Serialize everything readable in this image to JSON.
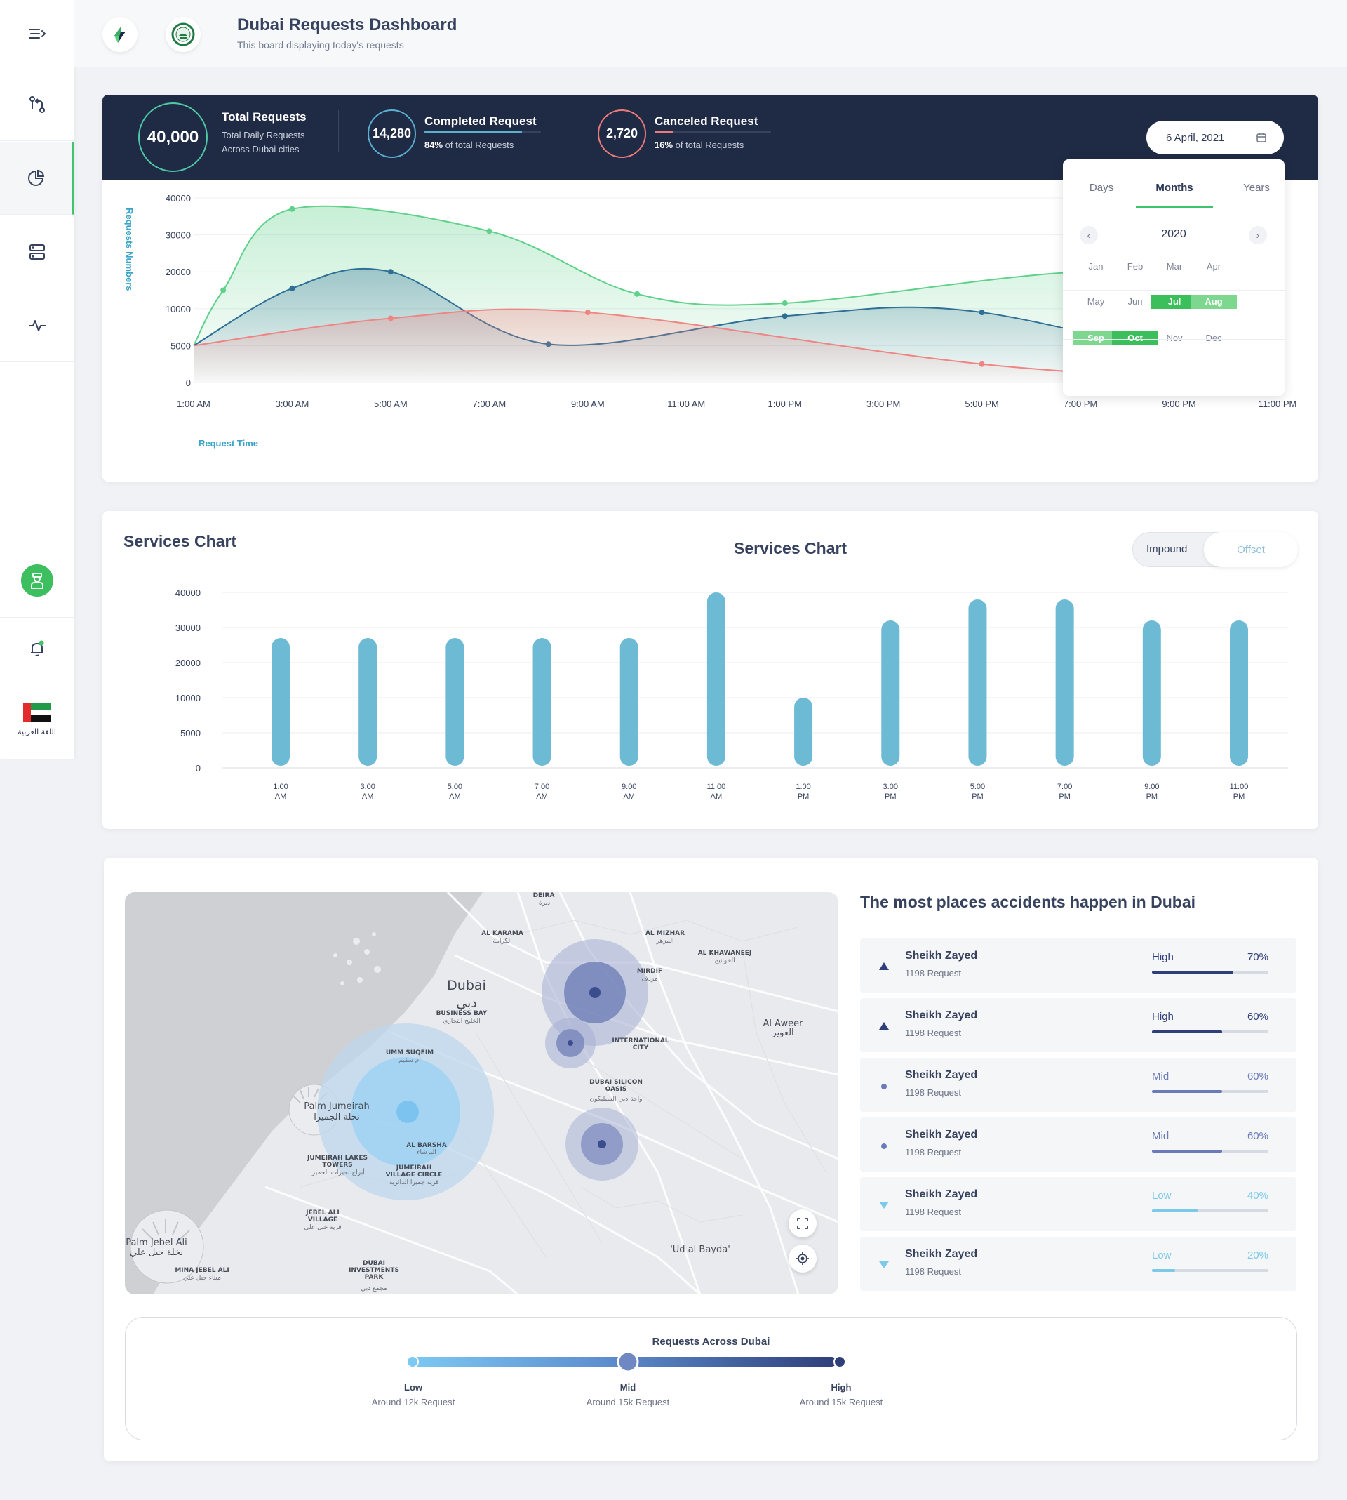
{
  "header": {
    "title": "Dubai Requests Dashboard",
    "subtitle": "This board displaying today's requests"
  },
  "sidebar": {
    "language_label": "اللغة العربية",
    "items": [
      "menu-toggle",
      "routes",
      "analytics",
      "servers",
      "activity"
    ]
  },
  "stats": {
    "total": {
      "value": "40,000",
      "title": "Total Requests",
      "line1": "Total Daily Requests",
      "line2": "Across Dubai cities"
    },
    "completed": {
      "value": "14,280",
      "title": "Completed Request",
      "percent": "84%",
      "percent_suffix": "of total Requests",
      "progress": 0.84,
      "color": "#5aaed0"
    },
    "canceled": {
      "value": "2,720",
      "title": "Canceled Request",
      "percent": "16%",
      "percent_suffix": "of total Requests",
      "progress": 0.16,
      "color": "#ec7a78"
    }
  },
  "date_picker": {
    "value": "6 April, 2021",
    "tabs": [
      "Days",
      "Months",
      "Years"
    ],
    "active_tab": "Months",
    "year": "2020",
    "months": [
      "Jan",
      "Feb",
      "Mar",
      "Apr",
      "May",
      "Jun",
      "Jul",
      "Aug",
      "Sep",
      "Oct",
      "Nov",
      "Dec"
    ],
    "selected": [
      "Jul",
      "Oct"
    ],
    "range": [
      "Aug",
      "Sep"
    ]
  },
  "chart_data": [
    {
      "type": "area",
      "ylabel": "Requests Numbers",
      "xlabel": "Request Time",
      "x": [
        "1:00 AM",
        "3:00 AM",
        "5:00 AM",
        "7:00 AM",
        "9:00 AM",
        "11:00 AM",
        "1:00 PM",
        "3:00 PM",
        "5:00 PM",
        "7:00 PM",
        "9:00 PM",
        "11:00 PM"
      ],
      "yticks": [
        "0",
        "5000",
        "10000",
        "20000",
        "30000",
        "40000"
      ],
      "series": [
        {
          "color": "#5fd18a",
          "points": [
            [
              0,
              5000
            ],
            [
              0.3,
              15000
            ],
            [
              1,
              37000
            ],
            [
              3,
              31000
            ],
            [
              4.5,
              14000
            ],
            [
              6,
              11500
            ],
            [
              9,
              20000
            ],
            [
              11,
              17000
            ]
          ]
        },
        {
          "color": "#2e6f95",
          "points": [
            [
              0,
              5000
            ],
            [
              1,
              15500
            ],
            [
              2,
              20000
            ],
            [
              3.6,
              5200
            ],
            [
              6,
              9000
            ],
            [
              8,
              9500
            ],
            [
              11,
              0
            ]
          ]
        },
        {
          "color": "#ef8583",
          "points": [
            [
              0,
              5000
            ],
            [
              2,
              8700
            ],
            [
              4,
              9500
            ],
            [
              8,
              2500
            ],
            [
              11,
              0
            ]
          ]
        }
      ]
    },
    {
      "type": "bar",
      "title": "Services Chart",
      "categories": [
        "1:00 AM",
        "3:00 AM",
        "5:00 AM",
        "7:00 AM",
        "9:00 AM",
        "11:00 AM",
        "1:00 PM",
        "3:00 PM",
        "5:00 PM",
        "7:00 PM",
        "9:00 PM",
        "11:00 PM"
      ],
      "values": [
        27000,
        27000,
        27000,
        27000,
        27000,
        40000,
        10000,
        32000,
        38000,
        38000,
        32000,
        32000
      ],
      "yticks": [
        "0",
        "5000",
        "10000",
        "20000",
        "30000",
        "40000"
      ],
      "color": "#6dbad4"
    }
  ],
  "services": {
    "title": "Services Chart",
    "center_title": "Services Chart",
    "toggle": [
      "Impound",
      "Offset"
    ],
    "active": "Offset"
  },
  "map": {
    "labels": [
      "DEIRA",
      "ديرة",
      "AL KARAMA",
      "الكرامة",
      "AL MIZHAR",
      "المزهر",
      "AL KHAWANEEJ",
      "الخوانيج",
      "Dubai",
      "دبي",
      "BUSINESS BAY",
      "الخليج التجاري",
      "MIRDIF",
      "مردف",
      "Al Aweer",
      "العوير",
      "INTERNATIONAL CITY",
      "UMM SUQEIM",
      "أم سقيم",
      "DUBAI SILICON OASIS",
      "واحة دبي السيليكون",
      "Palm Jumeirah",
      "نخلة الجميرا",
      "AL BARSHA",
      "البرشاء",
      "JUMEIRAH LAKES TOWERS",
      "أبراج بحيرات الجميرا",
      "JUMEIRAH VILLAGE CIRCLE",
      "قرية جميرا الدائرية",
      "JEBEL ALI VILLAGE",
      "قرية جبل علي",
      "Palm Jebel Ali",
      "نخلة جبل علي",
      "MINA JEBEL ALI",
      "ميناء جبل علي",
      "DUBAI INVESTMENTS PARK",
      "مجمع دبي",
      "'Ud al Bayda'"
    ]
  },
  "accidents": {
    "title": "The most places accidents happen in Dubai",
    "items": [
      {
        "name": "Sheikh Zayed",
        "requests": "1198 Request",
        "level": "High",
        "percent": "70%",
        "progress": 0.7
      },
      {
        "name": "Sheikh Zayed",
        "requests": "1198 Request",
        "level": "High",
        "percent": "60%",
        "progress": 0.6
      },
      {
        "name": "Sheikh Zayed",
        "requests": "1198 Request",
        "level": "Mid",
        "percent": "60%",
        "progress": 0.6
      },
      {
        "name": "Sheikh Zayed",
        "requests": "1198 Request",
        "level": "Mid",
        "percent": "60%",
        "progress": 0.6
      },
      {
        "name": "Sheikh Zayed",
        "requests": "1198 Request",
        "level": "Low",
        "percent": "40%",
        "progress": 0.4
      },
      {
        "name": "Sheikh Zayed",
        "requests": "1198 Request",
        "level": "Low",
        "percent": "20%",
        "progress": 0.2
      }
    ],
    "colors": {
      "High": "#2f3f7a",
      "Mid": "#6a7bb8",
      "Low": "#7cc9ea"
    }
  },
  "legend": {
    "title": "Requests Across Dubai",
    "levels": [
      {
        "label": "Low",
        "desc": "Around 12k Request"
      },
      {
        "label": "Mid",
        "desc": "Around 15k Request"
      },
      {
        "label": "High",
        "desc": "Around 15k Request"
      }
    ]
  }
}
